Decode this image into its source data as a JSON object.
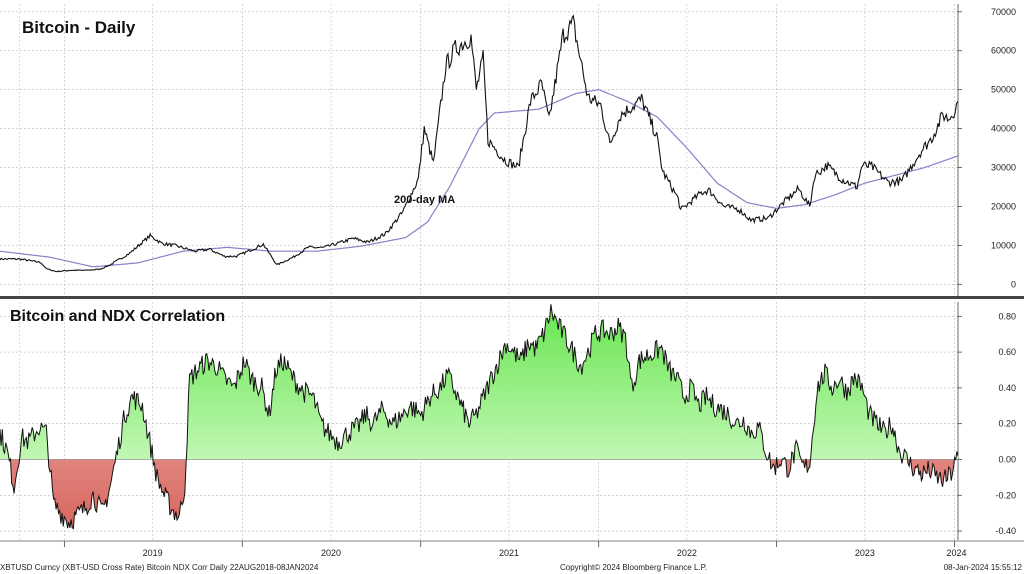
{
  "colors": {
    "price_line": "#111111",
    "ma_line": "#8a80c8",
    "corr_positive": "#66e44d",
    "corr_negative": "#d9706a",
    "grid": "#b9b9b9",
    "divider": "#444444"
  },
  "chart_data": [
    {
      "type": "line",
      "title": "Bitcoin - Daily",
      "ylim": [
        -3000,
        72000
      ],
      "y_ticks": [
        "0",
        "10000",
        "20000",
        "30000",
        "40000",
        "50000",
        "60000",
        "70000"
      ],
      "y_tick_values": [
        0,
        10000,
        20000,
        30000,
        40000,
        50000,
        60000,
        70000
      ],
      "grid": true,
      "annotation": "200-day MA",
      "series": [
        {
          "role": "price",
          "points": [
            [
              "2018-08-22",
              6500
            ],
            [
              "2018-10-01",
              6500
            ],
            [
              "2018-11-14",
              5600
            ],
            [
              "2018-11-25",
              4000
            ],
            [
              "2018-12-15",
              3300
            ],
            [
              "2019-01-15",
              3600
            ],
            [
              "2019-02-15",
              3600
            ],
            [
              "2019-03-15",
              3900
            ],
            [
              "2019-04-05",
              5000
            ],
            [
              "2019-05-15",
              8000
            ],
            [
              "2019-06-26",
              12500
            ],
            [
              "2019-07-20",
              10500
            ],
            [
              "2019-08-15",
              10000
            ],
            [
              "2019-09-25",
              8500
            ],
            [
              "2019-10-26",
              9000
            ],
            [
              "2019-11-25",
              7200
            ],
            [
              "2019-12-20",
              7200
            ],
            [
              "2020-01-15",
              8600
            ],
            [
              "2020-02-13",
              10300
            ],
            [
              "2020-03-12",
              5000
            ],
            [
              "2020-04-15",
              7000
            ],
            [
              "2020-05-15",
              9500
            ],
            [
              "2020-06-15",
              9400
            ],
            [
              "2020-07-27",
              11000
            ],
            [
              "2020-08-15",
              11800
            ],
            [
              "2020-09-15",
              10800
            ],
            [
              "2020-10-21",
              13000
            ],
            [
              "2020-11-25",
              18500
            ],
            [
              "2020-12-27",
              27000
            ],
            [
              "2021-01-08",
              40000
            ],
            [
              "2021-01-27",
              31000
            ],
            [
              "2021-02-21",
              56000
            ],
            [
              "2021-03-13",
              60500
            ],
            [
              "2021-04-14",
              63500
            ],
            [
              "2021-04-25",
              50000
            ],
            [
              "2021-05-09",
              58000
            ],
            [
              "2021-05-19",
              37000
            ],
            [
              "2021-06-22",
              32000
            ],
            [
              "2021-07-20",
              30000
            ],
            [
              "2021-08-14",
              47000
            ],
            [
              "2021-09-06",
              51500
            ],
            [
              "2021-09-21",
              42000
            ],
            [
              "2021-10-20",
              64000
            ],
            [
              "2021-11-10",
              67000
            ],
            [
              "2021-12-10",
              48000
            ],
            [
              "2022-01-05",
              46000
            ],
            [
              "2022-01-24",
              36000
            ],
            [
              "2022-02-15",
              43500
            ],
            [
              "2022-03-30",
              47500
            ],
            [
              "2022-04-30",
              38000
            ],
            [
              "2022-05-12",
              29000
            ],
            [
              "2022-06-13",
              22000
            ],
            [
              "2022-06-18",
              19000
            ],
            [
              "2022-07-30",
              23500
            ],
            [
              "2022-08-15",
              24200
            ],
            [
              "2022-09-15",
              20000
            ],
            [
              "2022-10-15",
              19300
            ],
            [
              "2022-11-09",
              16500
            ],
            [
              "2022-12-15",
              17000
            ],
            [
              "2023-01-15",
              21000
            ],
            [
              "2023-02-15",
              24500
            ],
            [
              "2023-03-10",
              20000
            ],
            [
              "2023-03-20",
              28000
            ],
            [
              "2023-04-14",
              30500
            ],
            [
              "2023-05-15",
              27000
            ],
            [
              "2023-06-15",
              25000
            ],
            [
              "2023-06-25",
              30500
            ],
            [
              "2023-07-15",
              30300
            ],
            [
              "2023-08-17",
              26200
            ],
            [
              "2023-09-15",
              26500
            ],
            [
              "2023-10-23",
              34000
            ],
            [
              "2023-11-15",
              37500
            ],
            [
              "2023-12-08",
              43500
            ],
            [
              "2023-12-20",
              42500
            ],
            [
              "2024-01-02",
              45000
            ],
            [
              "2024-01-08",
              47000
            ]
          ]
        },
        {
          "role": "moving_average",
          "points": [
            [
              "2018-08-22",
              8500
            ],
            [
              "2018-12-01",
              7000
            ],
            [
              "2019-03-01",
              4500
            ],
            [
              "2019-06-01",
              5500
            ],
            [
              "2019-09-01",
              8500
            ],
            [
              "2019-12-01",
              9500
            ],
            [
              "2020-03-01",
              8500
            ],
            [
              "2020-06-01",
              8500
            ],
            [
              "2020-09-01",
              9800
            ],
            [
              "2020-12-01",
              12000
            ],
            [
              "2021-01-15",
              16000
            ],
            [
              "2021-03-01",
              25000
            ],
            [
              "2021-05-01",
              40000
            ],
            [
              "2021-06-01",
              44000
            ],
            [
              "2021-09-01",
              45000
            ],
            [
              "2021-11-15",
              49000
            ],
            [
              "2022-01-01",
              50000
            ],
            [
              "2022-03-01",
              47000
            ],
            [
              "2022-05-01",
              43000
            ],
            [
              "2022-07-01",
              35000
            ],
            [
              "2022-09-01",
              26000
            ],
            [
              "2022-11-01",
              21000
            ],
            [
              "2023-01-01",
              19500
            ],
            [
              "2023-03-01",
              20500
            ],
            [
              "2023-05-01",
              23000
            ],
            [
              "2023-07-01",
              26000
            ],
            [
              "2023-09-01",
              28000
            ],
            [
              "2023-11-01",
              30000
            ],
            [
              "2024-01-08",
              33000
            ]
          ]
        }
      ]
    },
    {
      "type": "area",
      "title": "Bitcoin and NDX Correlation",
      "ylim": [
        -0.45,
        0.88
      ],
      "y_ticks": [
        "0.80",
        "0.60",
        "0.40",
        "0.20",
        "0.00",
        "-0.20",
        "-0.40"
      ],
      "y_tick_values": [
        0.8,
        0.6,
        0.4,
        0.2,
        0.0,
        -0.2,
        -0.4
      ],
      "grid": true,
      "series": [
        {
          "role": "correlation",
          "points": [
            [
              "2018-08-22",
              0.15
            ],
            [
              "2018-09-05",
              0.05
            ],
            [
              "2018-09-20",
              -0.15
            ],
            [
              "2018-10-05",
              0.12
            ],
            [
              "2018-10-20",
              0.1
            ],
            [
              "2018-11-10",
              0.18
            ],
            [
              "2018-11-25",
              0.15
            ],
            [
              "2018-12-10",
              -0.25
            ],
            [
              "2018-12-25",
              -0.3
            ],
            [
              "2019-01-10",
              -0.35
            ],
            [
              "2019-02-10",
              -0.28
            ],
            [
              "2019-03-01",
              -0.2
            ],
            [
              "2019-03-20",
              -0.3
            ],
            [
              "2019-04-05",
              -0.15
            ],
            [
              "2019-04-20",
              0.05
            ],
            [
              "2019-05-05",
              0.25
            ],
            [
              "2019-05-20",
              0.35
            ],
            [
              "2019-06-10",
              0.3
            ],
            [
              "2019-06-25",
              0.1
            ],
            [
              "2019-07-10",
              -0.1
            ],
            [
              "2019-07-25",
              -0.2
            ],
            [
              "2019-08-10",
              -0.28
            ],
            [
              "2019-08-25",
              -0.32
            ],
            [
              "2019-09-05",
              -0.15
            ],
            [
              "2019-09-15",
              0.45
            ],
            [
              "2019-10-01",
              0.5
            ],
            [
              "2019-10-20",
              0.55
            ],
            [
              "2019-11-10",
              0.52
            ],
            [
              "2019-11-25",
              0.45
            ],
            [
              "2019-12-15",
              0.4
            ],
            [
              "2020-01-05",
              0.55
            ],
            [
              "2020-01-20",
              0.45
            ],
            [
              "2020-02-10",
              0.4
            ],
            [
              "2020-02-25",
              0.25
            ],
            [
              "2020-03-10",
              0.5
            ],
            [
              "2020-03-25",
              0.55
            ],
            [
              "2020-04-15",
              0.45
            ],
            [
              "2020-05-05",
              0.38
            ],
            [
              "2020-05-25",
              0.35
            ],
            [
              "2020-06-10",
              0.2
            ],
            [
              "2020-06-25",
              0.15
            ],
            [
              "2020-07-15",
              0.1
            ],
            [
              "2020-08-05",
              0.15
            ],
            [
              "2020-08-25",
              0.18
            ],
            [
              "2020-09-10",
              0.25
            ],
            [
              "2020-09-25",
              0.2
            ],
            [
              "2020-10-15",
              0.28
            ],
            [
              "2020-11-05",
              0.2
            ],
            [
              "2020-11-25",
              0.25
            ],
            [
              "2020-12-10",
              0.3
            ],
            [
              "2021-01-01",
              0.25
            ],
            [
              "2021-01-20",
              0.35
            ],
            [
              "2021-02-10",
              0.4
            ],
            [
              "2021-02-25",
              0.47
            ],
            [
              "2021-03-10",
              0.4
            ],
            [
              "2021-03-25",
              0.3
            ],
            [
              "2021-04-10",
              0.2
            ],
            [
              "2021-04-25",
              0.25
            ],
            [
              "2021-05-10",
              0.35
            ],
            [
              "2021-05-25",
              0.45
            ],
            [
              "2021-06-10",
              0.55
            ],
            [
              "2021-06-25",
              0.65
            ],
            [
              "2021-07-10",
              0.6
            ],
            [
              "2021-07-25",
              0.55
            ],
            [
              "2021-08-10",
              0.65
            ],
            [
              "2021-08-25",
              0.62
            ],
            [
              "2021-09-10",
              0.7
            ],
            [
              "2021-09-25",
              0.83
            ],
            [
              "2021-10-10",
              0.75
            ],
            [
              "2021-10-25",
              0.68
            ],
            [
              "2021-11-10",
              0.6
            ],
            [
              "2021-11-25",
              0.52
            ],
            [
              "2021-12-10",
              0.6
            ],
            [
              "2021-12-25",
              0.7
            ],
            [
              "2022-01-10",
              0.72
            ],
            [
              "2022-01-25",
              0.7
            ],
            [
              "2022-02-10",
              0.74
            ],
            [
              "2022-02-25",
              0.68
            ],
            [
              "2022-03-10",
              0.4
            ],
            [
              "2022-03-25",
              0.55
            ],
            [
              "2022-04-10",
              0.58
            ],
            [
              "2022-04-25",
              0.6
            ],
            [
              "2022-05-10",
              0.62
            ],
            [
              "2022-05-25",
              0.5
            ],
            [
              "2022-06-10",
              0.45
            ],
            [
              "2022-06-25",
              0.35
            ],
            [
              "2022-07-10",
              0.4
            ],
            [
              "2022-07-25",
              0.3
            ],
            [
              "2022-08-10",
              0.35
            ],
            [
              "2022-08-25",
              0.3
            ],
            [
              "2022-09-10",
              0.28
            ],
            [
              "2022-09-25",
              0.25
            ],
            [
              "2022-10-10",
              0.2
            ],
            [
              "2022-10-25",
              0.22
            ],
            [
              "2022-11-10",
              0.15
            ],
            [
              "2022-11-25",
              0.18
            ],
            [
              "2022-12-10",
              0.05
            ],
            [
              "2022-12-25",
              -0.05
            ],
            [
              "2023-01-10",
              0.0
            ],
            [
              "2023-01-25",
              -0.05
            ],
            [
              "2023-02-10",
              0.05
            ],
            [
              "2023-02-25",
              -0.05
            ],
            [
              "2023-03-10",
              -0.02
            ],
            [
              "2023-03-25",
              0.4
            ],
            [
              "2023-04-10",
              0.48
            ],
            [
              "2023-04-25",
              0.4
            ],
            [
              "2023-05-10",
              0.45
            ],
            [
              "2023-05-25",
              0.38
            ],
            [
              "2023-06-10",
              0.46
            ],
            [
              "2023-06-25",
              0.4
            ],
            [
              "2023-07-10",
              0.25
            ],
            [
              "2023-07-25",
              0.2
            ],
            [
              "2023-08-10",
              0.15
            ],
            [
              "2023-08-25",
              0.2
            ],
            [
              "2023-09-10",
              0.05
            ],
            [
              "2023-09-25",
              0.0
            ],
            [
              "2023-10-10",
              -0.05
            ],
            [
              "2023-10-25",
              -0.08
            ],
            [
              "2023-11-10",
              -0.06
            ],
            [
              "2023-11-25",
              -0.1
            ],
            [
              "2023-12-10",
              -0.12
            ],
            [
              "2023-12-25",
              -0.08
            ],
            [
              "2024-01-08",
              0.02
            ]
          ]
        }
      ]
    }
  ],
  "x_axis": {
    "labels": [
      "2019",
      "2020",
      "2021",
      "2022",
      "2023",
      "2024"
    ],
    "label_dates": [
      "2019-07-01",
      "2020-07-01",
      "2021-07-01",
      "2022-07-01",
      "2023-07-01",
      "2024-01-05"
    ],
    "year_starts": [
      "2019-01-01",
      "2020-01-01",
      "2021-01-01",
      "2022-01-01",
      "2023-01-01",
      "2024-01-01"
    ],
    "start": "2018-08-22",
    "end": "2024-01-08"
  },
  "footer": {
    "left": "XBTUSD Curncy (XBT-USD Cross Rate) Bitcoin NDX Corr  Daily 22AUG2018-08JAN2024",
    "center": "Copyright© 2024 Bloomberg Finance L.P.",
    "right": "08-Jan-2024 15:55:12"
  }
}
